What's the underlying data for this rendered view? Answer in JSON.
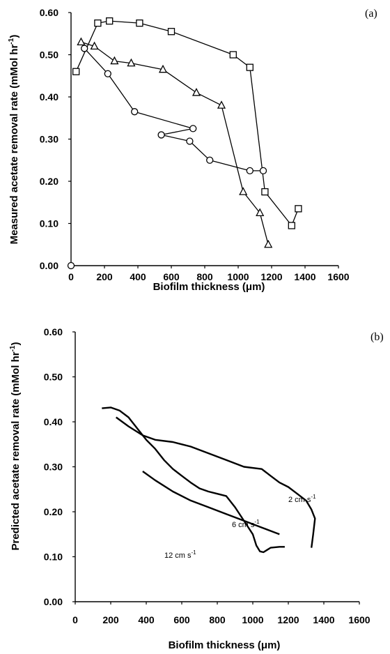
{
  "chart_data": [
    {
      "type": "line",
      "panel_label": "(a)",
      "xlabel": "Biofilm thickness (μm)",
      "ylabel": "Measured acetate removal rate (mMol hr",
      "ylabel_sup": "-1",
      "ylabel_close": ")",
      "xlim": [
        0,
        1600
      ],
      "ylim": [
        0,
        0.6
      ],
      "xticks": [
        "0",
        "200",
        "400",
        "600",
        "800",
        "1000",
        "1200",
        "1400",
        "1600"
      ],
      "yticks": [
        "0.00",
        "0.10",
        "0.20",
        "0.30",
        "0.40",
        "0.50",
        "0.60"
      ],
      "grid": false,
      "series": [
        {
          "marker": "square",
          "x": [
            30,
            160,
            230,
            410,
            600,
            970,
            1070,
            1160,
            1320,
            1360
          ],
          "y": [
            0.46,
            0.575,
            0.58,
            0.575,
            0.555,
            0.5,
            0.47,
            0.175,
            0.095,
            0.135
          ]
        },
        {
          "marker": "triangle",
          "x": [
            60,
            140,
            260,
            360,
            550,
            750,
            900,
            1030,
            1130,
            1180
          ],
          "y": [
            0.53,
            0.52,
            0.485,
            0.48,
            0.465,
            0.41,
            0.38,
            0.175,
            0.125,
            0.05
          ]
        },
        {
          "marker": "circle",
          "x": [
            80,
            220,
            380,
            730,
            540,
            710,
            830,
            1070,
            1150
          ],
          "y": [
            0.515,
            0.455,
            0.365,
            0.325,
            0.31,
            0.295,
            0.25,
            0.225,
            0.225
          ]
        },
        {
          "marker": "circle",
          "x": [
            0
          ],
          "y": [
            0
          ]
        }
      ]
    },
    {
      "type": "line",
      "panel_label": "(b)",
      "xlabel": "Biofilm thickness (μm)",
      "ylabel": "Predicted acetate removal rate (mMol hr",
      "ylabel_sup": "-1",
      "ylabel_close": ")",
      "xlim": [
        0,
        1600
      ],
      "ylim": [
        0,
        0.6
      ],
      "xticks": [
        "0",
        "200",
        "400",
        "600",
        "800",
        "1000",
        "1200",
        "1400",
        "1600"
      ],
      "yticks": [
        "0.00",
        "0.10",
        "0.20",
        "0.30",
        "0.40",
        "0.50",
        "0.60"
      ],
      "grid": false,
      "series": [
        {
          "name": "2 cm s",
          "name_sup": "-1",
          "x": [
            230,
            300,
            380,
            450,
            550,
            650,
            750,
            850,
            950,
            1050,
            1100,
            1150,
            1200,
            1250,
            1300,
            1330,
            1350,
            1340,
            1330
          ],
          "y": [
            0.41,
            0.39,
            0.37,
            0.36,
            0.355,
            0.345,
            0.33,
            0.315,
            0.3,
            0.295,
            0.28,
            0.265,
            0.255,
            0.24,
            0.225,
            0.205,
            0.185,
            0.15,
            0.12
          ]
        },
        {
          "name": "6 cm s",
          "name_sup": "-1",
          "x": [
            150,
            200,
            250,
            300,
            350,
            400,
            450,
            500,
            550,
            600,
            650,
            700,
            750,
            800,
            850,
            900,
            950,
            1000,
            1020,
            1040,
            1060,
            1080,
            1100,
            1150,
            1180
          ],
          "y": [
            0.43,
            0.432,
            0.425,
            0.41,
            0.385,
            0.36,
            0.34,
            0.315,
            0.295,
            0.28,
            0.265,
            0.252,
            0.245,
            0.24,
            0.235,
            0.21,
            0.18,
            0.15,
            0.125,
            0.112,
            0.11,
            0.115,
            0.12,
            0.122,
            0.122
          ]
        },
        {
          "name": "12 cm s",
          "name_sup": "-1",
          "x": [
            380,
            450,
            550,
            650,
            750,
            850,
            950,
            1050,
            1150
          ],
          "y": [
            0.29,
            0.27,
            0.245,
            0.225,
            0.21,
            0.195,
            0.18,
            0.165,
            0.15
          ]
        }
      ]
    }
  ]
}
